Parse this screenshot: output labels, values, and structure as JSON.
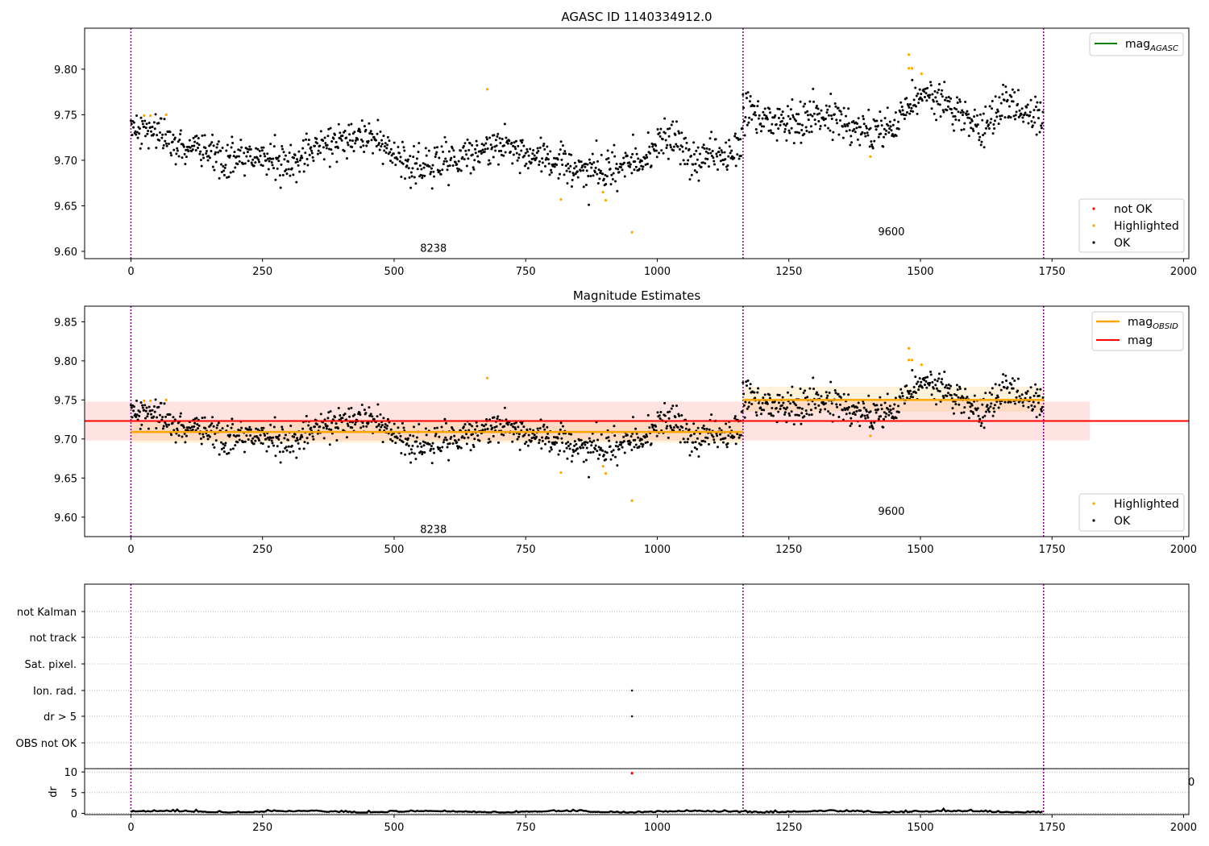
{
  "colors": {
    "ok": "#000000",
    "highlighted": "#ffa500",
    "not_ok": "#ff0000",
    "mag_agasc_line": "#008000",
    "mag_obsid_line": "#ffa500",
    "mag_line": "#ff0000",
    "obs_boundary": "#800080",
    "grid": "#b0b0b0"
  },
  "top": {
    "title": "AGASC ID 1140334912.0",
    "legend_line": {
      "label": "mag",
      "subscript": "AGASC"
    },
    "legend_points": [
      "not OK",
      "Highlighted",
      "OK"
    ]
  },
  "middle": {
    "title": "Magnitude Estimates",
    "legend_lines": [
      {
        "label": "mag",
        "subscript": "OBSID"
      },
      {
        "label": "mag",
        "subscript": ""
      }
    ],
    "legend_points": [
      "Highlighted",
      "OK"
    ]
  },
  "flags": {
    "categories": [
      "not Kalman",
      "not track",
      "Sat. pixel.",
      "Ion. rad.",
      "dr > 5",
      "OBS not OK"
    ],
    "dr_label": "dr",
    "stray_tick_label": "0"
  },
  "obs_labels": [
    "8238",
    "9600"
  ],
  "chart_data": [
    {
      "type": "scatter",
      "title": "AGASC ID 1140334912.0",
      "xlim": [
        -88,
        2010
      ],
      "ylim": [
        9.592,
        9.845
      ],
      "xticks": [
        0,
        250,
        500,
        750,
        1000,
        1250,
        1500,
        1750,
        2000
      ],
      "yticks": [
        9.6,
        9.65,
        9.7,
        9.75,
        9.8
      ],
      "obs_boundaries": [
        0,
        1163,
        1734
      ],
      "observations": [
        {
          "obsid": "8238",
          "x_range": [
            0,
            1163
          ],
          "mean_mag": 9.709,
          "label_x": 580,
          "label_y": 9.604
        },
        {
          "obsid": "9600",
          "x_range": [
            1163,
            1734
          ],
          "mean_mag": 9.75,
          "label_x": 1450,
          "label_y": 9.622
        }
      ],
      "highlighted_points": [
        [
          25,
          9.749
        ],
        [
          37,
          9.749
        ],
        [
          67,
          9.75
        ],
        [
          677,
          9.778
        ],
        [
          817,
          9.657
        ],
        [
          897,
          9.665
        ],
        [
          902,
          9.656
        ],
        [
          952,
          9.621
        ],
        [
          1405,
          9.704
        ],
        [
          1478,
          9.816
        ],
        [
          1478,
          9.801
        ],
        [
          1484,
          9.801
        ],
        [
          1502,
          9.795
        ]
      ],
      "not_ok_points": [],
      "series": [
        {
          "name": "OK",
          "marker": "point"
        },
        {
          "name": "Highlighted",
          "marker": "point"
        },
        {
          "name": "not OK",
          "marker": "point"
        }
      ],
      "legend": [
        "mag AGASC",
        "not OK",
        "Highlighted",
        "OK"
      ]
    },
    {
      "type": "scatter",
      "title": "Magnitude Estimates",
      "xlim": [
        -88,
        2010
      ],
      "ylim": [
        9.575,
        9.87
      ],
      "xticks": [
        0,
        250,
        500,
        750,
        1000,
        1250,
        1500,
        1750,
        2000
      ],
      "yticks": [
        9.6,
        9.65,
        9.7,
        9.75,
        9.8,
        9.85
      ],
      "mag": {
        "value": 9.723,
        "band": [
          9.698,
          9.748
        ]
      },
      "mag_obsid": [
        {
          "obsid": "8238",
          "x_range": [
            0,
            1163
          ],
          "value": 9.709,
          "band": [
            9.695,
            9.723
          ]
        },
        {
          "obsid": "9600",
          "x_range": [
            1163,
            1734
          ],
          "value": 9.75,
          "band": [
            9.735,
            9.767
          ]
        }
      ],
      "mag_band_x_range": [
        -88,
        1822
      ],
      "legend": [
        "mag OBSID",
        "mag",
        "Highlighted",
        "OK"
      ]
    },
    {
      "type": "scatter",
      "title": "",
      "categories": [
        "not Kalman",
        "not track",
        "Sat. pixel.",
        "Ion. rad.",
        "dr > 5",
        "OBS not OK"
      ],
      "flag_points": [
        {
          "category": "Ion. rad.",
          "x": 952
        },
        {
          "category": "dr > 5",
          "x": 952
        }
      ],
      "xlim": [
        -88,
        2010
      ]
    },
    {
      "type": "line",
      "ylabel": "dr",
      "xlim": [
        -88,
        2010
      ],
      "ylim": [
        -0.3,
        10.8
      ],
      "yticks": [
        0,
        5,
        10
      ],
      "xticks": [
        0,
        250,
        500,
        750,
        1000,
        1250,
        1500,
        1750,
        2000
      ],
      "baseline": 0.3,
      "outlier": {
        "x": 952,
        "y": 9.7
      }
    }
  ]
}
